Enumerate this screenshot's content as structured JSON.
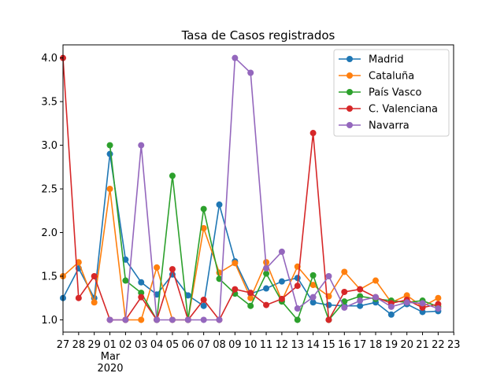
{
  "chart_data": {
    "type": "line",
    "title": "Tasa de Casos registrados",
    "xlabel": "",
    "ylabel": "",
    "x_tick_labels": [
      "27",
      "28",
      "29",
      "01",
      "02",
      "03",
      "04",
      "05",
      "06",
      "07",
      "08",
      "09",
      "10",
      "11",
      "12",
      "13",
      "14",
      "15",
      "16",
      "17",
      "18",
      "19",
      "20",
      "21",
      "22",
      "23"
    ],
    "x_secondary_label": "Mar",
    "x_year_label": "2020",
    "ylim": [
      0.86,
      4.15
    ],
    "y_ticks": [
      "1.0",
      "1.5",
      "2.0",
      "2.5",
      "3.0",
      "3.5",
      "4.0"
    ],
    "grid": false,
    "legend_position": "top-right",
    "series": [
      {
        "name": "Madrid",
        "color": "#1f77b4",
        "values": [
          1.25,
          1.59,
          1.25,
          2.9,
          1.69,
          1.43,
          1.29,
          1.52,
          1.28,
          1.16,
          2.32,
          1.67,
          1.3,
          1.36,
          1.44,
          1.48,
          1.2,
          1.17,
          1.16,
          1.16,
          1.2,
          1.06,
          1.18,
          1.09,
          1.1
        ]
      },
      {
        "name": "Cataluña",
        "color": "#ff7f0e",
        "values": [
          1.5,
          1.66,
          1.2,
          2.5,
          1.0,
          1.0,
          1.6,
          1.0,
          1.0,
          2.05,
          1.54,
          1.65,
          1.25,
          1.66,
          1.22,
          1.61,
          1.4,
          1.27,
          1.55,
          1.35,
          1.45,
          1.2,
          1.28,
          1.15,
          1.25
        ]
      },
      {
        "name": "País Vasco",
        "color": "#2ca02c",
        "values": [
          null,
          null,
          null,
          3.0,
          1.45,
          1.31,
          1.0,
          2.65,
          1.0,
          2.27,
          1.47,
          1.3,
          1.16,
          1.53,
          1.21,
          1.0,
          1.51,
          1.0,
          1.21,
          1.27,
          1.24,
          1.22,
          1.2,
          1.22,
          1.15
        ]
      },
      {
        "name": "C. Valenciana",
        "color": "#d62728",
        "values": [
          4.0,
          1.25,
          1.5,
          1.0,
          1.0,
          1.26,
          1.0,
          1.58,
          1.0,
          1.23,
          1.0,
          1.35,
          1.31,
          1.17,
          1.24,
          1.39,
          3.14,
          1.0,
          1.32,
          1.35,
          1.26,
          1.19,
          1.23,
          1.14,
          1.18
        ]
      },
      {
        "name": "Navarra",
        "color": "#9467bd",
        "values": [
          null,
          null,
          null,
          1.0,
          1.0,
          3.0,
          1.0,
          1.0,
          1.0,
          1.0,
          1.0,
          4.0,
          3.83,
          1.59,
          1.78,
          1.13,
          1.26,
          1.5,
          1.14,
          1.22,
          1.26,
          1.15,
          1.2,
          1.19,
          1.13
        ]
      }
    ]
  }
}
